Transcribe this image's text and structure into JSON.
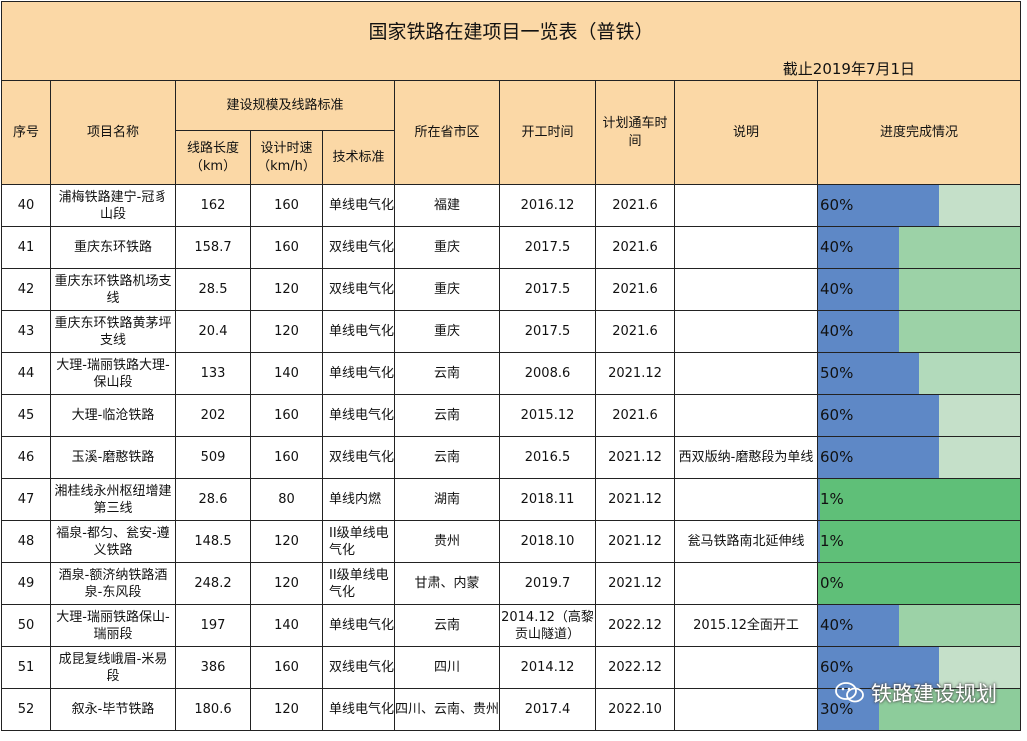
{
  "title": "国家铁路在建项目一览表（普铁）",
  "date_note": "截止2019年7月1日",
  "headers": {
    "index": "序号",
    "name": "项目名称",
    "scale_group": "建设规模及线路标准",
    "length": "线路长度（km）",
    "speed": "设计时速（km/h）",
    "standard": "技术标准",
    "province": "所在省市区",
    "start": "开工时间",
    "plan": "计划通车时间",
    "note": "说明",
    "progress": "进度完成情况"
  },
  "rows": [
    {
      "no": "40",
      "name": "浦梅铁路建宁-冠豸山段",
      "length": "162",
      "speed": "160",
      "standard": "单线电气化",
      "province": "福建",
      "start": "2016.12",
      "plan": "2021.6",
      "note": "",
      "progress": "60%",
      "pct": 0.6,
      "bg": "#c5e0c9"
    },
    {
      "no": "41",
      "name": "重庆东环铁路",
      "length": "158.7",
      "speed": "160",
      "standard": "双线电气化",
      "province": "重庆",
      "start": "2017.5",
      "plan": "2021.6",
      "note": "",
      "progress": "40%",
      "pct": 0.4,
      "bg": "#9cd2a7"
    },
    {
      "no": "42",
      "name": "重庆东环铁路机场支线",
      "length": "28.5",
      "speed": "120",
      "standard": "双线电气化",
      "province": "重庆",
      "start": "2017.5",
      "plan": "2021.6",
      "note": "",
      "progress": "40%",
      "pct": 0.4,
      "bg": "#9cd2a7"
    },
    {
      "no": "43",
      "name": "重庆东环铁路黄茅坪支线",
      "length": "20.4",
      "speed": "120",
      "standard": "单线电气化",
      "province": "重庆",
      "start": "2017.5",
      "plan": "2021.6",
      "note": "",
      "progress": "40%",
      "pct": 0.4,
      "bg": "#9cd2a7"
    },
    {
      "no": "44",
      "name": "大理-瑞丽铁路大理-保山段",
      "length": "133",
      "speed": "140",
      "standard": "单线电气化",
      "province": "云南",
      "start": "2008.6",
      "plan": "2021.12",
      "note": "",
      "progress": "50%",
      "pct": 0.5,
      "bg": "#b2dabb"
    },
    {
      "no": "45",
      "name": "大理-临沧铁路",
      "length": "202",
      "speed": "160",
      "standard": "单线电气化",
      "province": "云南",
      "start": "2015.12",
      "plan": "2021.6",
      "note": "",
      "progress": "60%",
      "pct": 0.6,
      "bg": "#c5e0c9"
    },
    {
      "no": "46",
      "name": "玉溪-磨憨铁路",
      "length": "509",
      "speed": "160",
      "standard": "双线电气化",
      "province": "云南",
      "start": "2016.5",
      "plan": "2021.12",
      "note": "西双版纳-磨憨段为单线",
      "progress": "60%",
      "pct": 0.6,
      "bg": "#c5e0c9"
    },
    {
      "no": "47",
      "name": "湘桂线永州枢纽增建第三线",
      "length": "28.6",
      "speed": "80",
      "standard": "单线内燃",
      "province": "湖南",
      "start": "2018.11",
      "plan": "2021.12",
      "note": "",
      "progress": "1%",
      "pct": 0.01,
      "bg": "#5fbf78"
    },
    {
      "no": "48",
      "name": "福泉-都匀、瓮安-遵义铁路",
      "length": "148.5",
      "speed": "120",
      "standard": "II级单线电气化",
      "province": "贵州",
      "start": "2018.10",
      "plan": "2021.12",
      "note": "瓮马铁路南北延伸线",
      "progress": "1%",
      "pct": 0.01,
      "bg": "#5fbf78"
    },
    {
      "no": "49",
      "name": "酒泉-额济纳铁路酒泉-东风段",
      "length": "248.2",
      "speed": "120",
      "standard": "II级单线电气化",
      "province": "甘肃、内蒙",
      "start": "2019.7",
      "plan": "2021.12",
      "note": "",
      "progress": "0%",
      "pct": 0,
      "bg": "#5fbf78"
    },
    {
      "no": "50",
      "name": "大理-瑞丽铁路保山-瑞丽段",
      "length": "197",
      "speed": "140",
      "standard": "单线电气化",
      "province": "云南",
      "start": "2014.12（高黎贡山隧道）",
      "plan": "2022.12",
      "note": "2015.12全面开工",
      "progress": "40%",
      "pct": 0.4,
      "bg": "#9cd2a7"
    },
    {
      "no": "51",
      "name": "成昆复线峨眉-米易段",
      "length": "386",
      "speed": "160",
      "standard": "双线电气化",
      "province": "四川",
      "start": "2014.12",
      "plan": "2022.12",
      "note": "",
      "progress": "60%",
      "pct": 0.6,
      "bg": "#c5e0c9"
    },
    {
      "no": "52",
      "name": "叙永-毕节铁路",
      "length": "180.6",
      "speed": "120",
      "standard": "单线电气化",
      "province": "四川、云南、贵州",
      "start": "2017.4",
      "plan": "2022.10",
      "note": "",
      "progress": "30%",
      "pct": 0.3,
      "bg": "#8dcc9b"
    }
  ],
  "watermark": "铁路建设规划",
  "colors": {
    "header_bg": "#fbd8a6",
    "bar": "#5e88c6"
  }
}
